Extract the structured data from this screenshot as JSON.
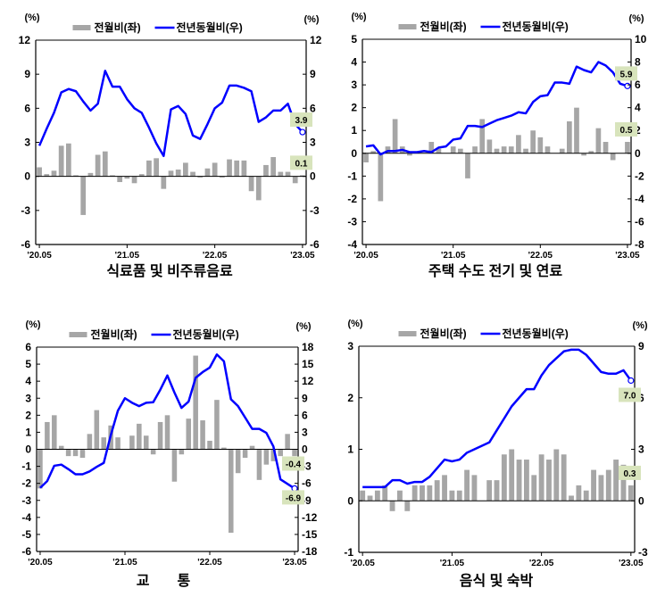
{
  "legend": {
    "bar_label": "전월비(좌)",
    "line_label": "전년동월비(우)"
  },
  "unit_label": "(%)",
  "colors": {
    "bar": "#a6a6a6",
    "line": "#0000ff",
    "callout_bg": "#d8e4bc",
    "axis": "#000000"
  },
  "chart_data": [
    {
      "type": "bar+line",
      "title": "식료품 및 비주류음료",
      "x_ticks": [
        "'20.05",
        "'21.05",
        "'22.05",
        "'23.05"
      ],
      "left_ylim": [
        -6,
        12
      ],
      "left_step": 3,
      "right_ylim": [
        -6,
        12
      ],
      "right_step": 3,
      "grid": false,
      "legend_position": "top",
      "series": [
        {
          "name": "전월비(좌)",
          "axis": "left",
          "kind": "bar",
          "values": [
            0.8,
            0.2,
            0.5,
            2.7,
            2.9,
            0.1,
            -3.4,
            0.3,
            1.9,
            2.2,
            0.1,
            -0.5,
            -0.2,
            -0.6,
            0.2,
            1.4,
            1.6,
            -1.1,
            0.5,
            0.6,
            1.2,
            0.4,
            -0.1,
            0.7,
            1.2,
            -0.1,
            1.5,
            1.4,
            1.4,
            -1.3,
            -2.1,
            1.0,
            1.7,
            0.4,
            0.4,
            -0.6,
            0.1
          ]
        },
        {
          "name": "전년동월비(우)",
          "axis": "right",
          "kind": "line",
          "values": [
            2.7,
            4.2,
            5.6,
            7.4,
            7.7,
            7.5,
            6.6,
            5.8,
            6.4,
            9.3,
            7.9,
            7.9,
            6.8,
            6.0,
            5.6,
            4.3,
            2.9,
            1.8,
            5.9,
            6.2,
            5.5,
            3.6,
            3.3,
            4.6,
            6.0,
            6.5,
            8.0,
            8.0,
            7.8,
            7.5,
            4.8,
            5.2,
            5.8,
            5.8,
            6.4,
            4.6,
            3.9
          ]
        }
      ],
      "callouts": {
        "bar": "0.1",
        "line": "3.9"
      }
    },
    {
      "type": "bar+line",
      "title": "주택 수도 전기 및 연료",
      "x_ticks": [
        "'20.05",
        "'21.05",
        "'22.05",
        "'23.05"
      ],
      "left_ylim": [
        -4,
        5
      ],
      "left_step": 1,
      "right_ylim": [
        -8,
        10
      ],
      "right_step": 2,
      "grid": false,
      "legend_position": "top",
      "series": [
        {
          "name": "전월비(좌)",
          "axis": "left",
          "kind": "bar",
          "values": [
            -0.4,
            0.1,
            -2.1,
            0.3,
            1.5,
            0.3,
            -0.1,
            0,
            0,
            0.5,
            0.2,
            0,
            0.3,
            0.2,
            -1.1,
            0.3,
            1.5,
            0.6,
            0.2,
            0.3,
            0.3,
            0.8,
            0.2,
            1.0,
            0.7,
            0.3,
            0,
            0.2,
            1.4,
            2.0,
            -0.1,
            0.1,
            1.1,
            0.5,
            -0.3,
            0,
            0.5
          ]
        },
        {
          "name": "전년동월비(우)",
          "axis": "right",
          "kind": "line",
          "values": [
            0.6,
            0.7,
            -0.1,
            0.2,
            0.2,
            0.3,
            0.1,
            0.1,
            0.2,
            0.1,
            0.5,
            0.6,
            1.2,
            1.3,
            2.4,
            2.4,
            2.3,
            2.6,
            2.9,
            3.1,
            3.3,
            3.6,
            3.5,
            4.5,
            5.0,
            5.1,
            6.2,
            6.2,
            6.1,
            7.6,
            7.3,
            7.1,
            8.0,
            7.7,
            7.1,
            6.1,
            5.9
          ]
        }
      ],
      "callouts": {
        "bar": "0.5",
        "line": "5.9"
      }
    },
    {
      "type": "bar+line",
      "title": "교       통",
      "x_ticks": [
        "'20.05",
        "'21.05",
        "'22.05",
        "'23.05"
      ],
      "left_ylim": [
        -6,
        6
      ],
      "left_step": 1,
      "right_ylim": [
        -18,
        18
      ],
      "right_step": 3,
      "grid": false,
      "legend_position": "top",
      "series": [
        {
          "name": "전월비(좌)",
          "axis": "left",
          "kind": "bar",
          "values": [
            -2.3,
            1.6,
            2.0,
            0.2,
            -0.4,
            -0.4,
            -0.5,
            0.9,
            2.3,
            0.7,
            1.4,
            0.7,
            0,
            0.8,
            1.5,
            0.8,
            -0.3,
            1.6,
            2.0,
            -1.9,
            -0.3,
            1.8,
            5.5,
            1.7,
            0.5,
            2.9,
            0.1,
            -4.9,
            -1.4,
            -0.5,
            0.2,
            -1.8,
            -0.9,
            -0.7,
            -0.4,
            0.9,
            -0.4
          ]
        },
        {
          "name": "전년동월비(우)",
          "axis": "right",
          "kind": "line",
          "values": [
            -6.8,
            -5.6,
            -2.9,
            -2.7,
            -3.5,
            -4.4,
            -4.4,
            -3.9,
            -3.1,
            -2.4,
            2.5,
            6.8,
            9.0,
            8.2,
            7.6,
            8.2,
            8.3,
            10.5,
            13.0,
            10.0,
            7.3,
            8.4,
            12.6,
            13.6,
            14.4,
            16.7,
            15.5,
            8.8,
            7.6,
            5.6,
            3.6,
            3.6,
            2.9,
            0.5,
            -5.3,
            -6.1,
            -6.9
          ]
        }
      ],
      "callouts": {
        "bar": "-0.4",
        "line": "-6.9"
      }
    },
    {
      "type": "bar+line",
      "title": "음식 및 숙박",
      "x_ticks": [
        "'20.05",
        "'21.05",
        "'22.05",
        "'23.05"
      ],
      "left_ylim": [
        -1,
        3
      ],
      "left_step": 1,
      "right_ylim": [
        -3,
        9
      ],
      "right_step": 3,
      "grid": false,
      "legend_position": "top",
      "series": [
        {
          "name": "전월비(좌)",
          "axis": "left",
          "kind": "bar",
          "values": [
            0.2,
            0.1,
            0.2,
            0.3,
            -0.2,
            0.2,
            -0.2,
            0.3,
            0.3,
            0.3,
            0.4,
            0.5,
            0.2,
            0.2,
            0.6,
            0.5,
            0,
            0.4,
            0.4,
            0.9,
            1.0,
            0.8,
            0.8,
            0.5,
            0.9,
            0.8,
            1.0,
            0.9,
            0.1,
            0.3,
            0.2,
            0.6,
            0.5,
            0.6,
            0.8,
            0.7,
            0.3
          ]
        },
        {
          "name": "전년동월비(우)",
          "axis": "right",
          "kind": "line",
          "values": [
            0.8,
            0.8,
            0.8,
            0.8,
            1.2,
            1.2,
            1.0,
            1.1,
            1.1,
            1.4,
            1.9,
            2.4,
            2.3,
            2.4,
            2.8,
            3.0,
            3.2,
            3.4,
            4.1,
            4.8,
            5.5,
            6.0,
            6.5,
            6.5,
            7.3,
            7.9,
            8.3,
            8.7,
            8.8,
            8.8,
            8.5,
            8.0,
            7.5,
            7.4,
            7.4,
            7.6,
            7.0
          ]
        }
      ],
      "callouts": {
        "bar": "0.3",
        "line": "7.0"
      }
    }
  ]
}
